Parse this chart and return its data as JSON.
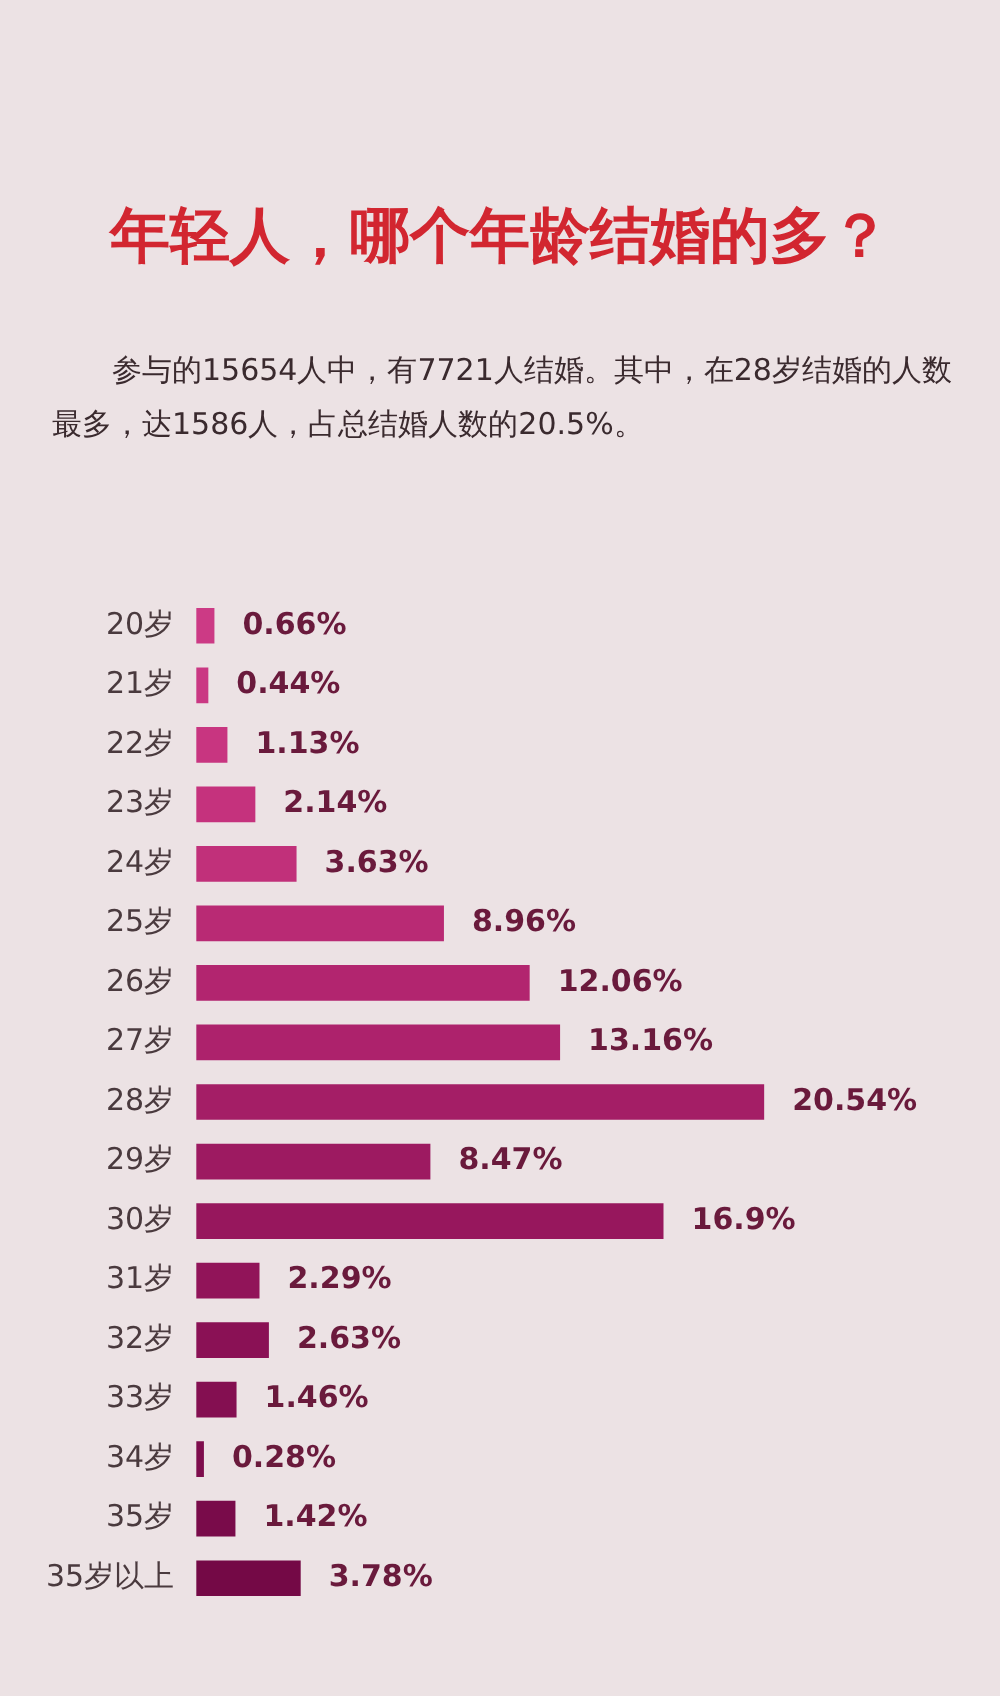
{
  "chart_data": {
    "type": "bar",
    "orientation": "horizontal",
    "title": "年轻人，哪个年龄结婚的多？",
    "subtitle": "参与的15654人中，有7721人结婚。其中，在28岁结婚的人数最多，达1586人，占总结婚人数的20.5%。",
    "categories": [
      "20岁",
      "21岁",
      "22岁",
      "23岁",
      "24岁",
      "25岁",
      "26岁",
      "27岁",
      "28岁",
      "29岁",
      "30岁",
      "31岁",
      "32岁",
      "33岁",
      "34岁",
      "35岁",
      "35岁以上"
    ],
    "values": [
      0.66,
      0.44,
      1.13,
      2.14,
      3.63,
      8.96,
      12.06,
      13.16,
      20.54,
      8.47,
      16.9,
      2.29,
      2.63,
      1.46,
      0.28,
      1.42,
      3.78
    ],
    "value_labels": [
      "0.66%",
      "0.44%",
      "1.13%",
      "2.14%",
      "3.63%",
      "8.96%",
      "12.06%",
      "13.16%",
      "20.54%",
      "8.47%",
      "16.9%",
      "2.29%",
      "2.63%",
      "1.46%",
      "0.28%",
      "1.42%",
      "3.78%"
    ],
    "colors": [
      "#cc3a85",
      "#ca3883",
      "#c83580",
      "#c5327d",
      "#c1307a",
      "#b92a74",
      "#b2256f",
      "#ad226c",
      "#a41e66",
      "#9d1a61",
      "#97175d",
      "#911459",
      "#8a1155",
      "#840f51",
      "#7e0d4d",
      "#790b4a",
      "#740946"
    ],
    "grid": false,
    "legend": false
  }
}
